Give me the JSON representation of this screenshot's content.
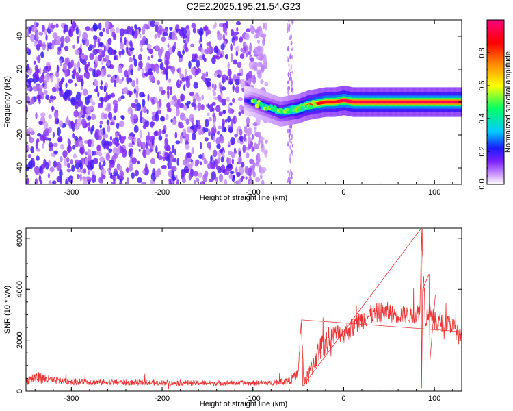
{
  "figure": {
    "title": "C2E2.2025.195.21.54.G23"
  },
  "chart_data": [
    {
      "type": "heatmap",
      "title": "C2E2.2025.195.21.54.G23",
      "xlabel": "Height of straight line (km)",
      "ylabel": "Frequency (Hz)",
      "xlim": [
        -350,
        130
      ],
      "ylim": [
        -50,
        50
      ],
      "x_ticks": [
        -300,
        -200,
        -100,
        0,
        100
      ],
      "y_ticks": [
        -40,
        -20,
        0,
        20,
        40
      ],
      "colorbar": {
        "label": "Normalized spectral amplitude",
        "range": [
          0,
          1
        ],
        "ticks": [
          0.0,
          0.2,
          0.4,
          0.6,
          0.8
        ],
        "colors": [
          "#ffffff",
          "#cc99ff",
          "#7a20ff",
          "#1a1aff",
          "#00ccff",
          "#00ff66",
          "#ffff00",
          "#ff7f00",
          "#ff0000",
          "#ff0080"
        ]
      },
      "noise_region": {
        "x_range": [
          -350,
          -85
        ],
        "freq_range": [
          -50,
          48
        ],
        "amplitude_range": [
          0.05,
          0.2
        ]
      },
      "signal_ridge": {
        "x": [
          -110,
          -100,
          -90,
          -80,
          -70,
          -60,
          -50,
          -40,
          -30,
          -20,
          -10,
          0,
          10,
          30,
          50,
          75,
          90,
          100,
          130
        ],
        "freq": [
          1,
          0,
          -2,
          -4,
          -6,
          -5,
          -4,
          -2,
          -1,
          0,
          0,
          1,
          0,
          0,
          0,
          0,
          0,
          0,
          0
        ],
        "amplitude": [
          0.15,
          0.3,
          0.4,
          0.45,
          0.5,
          0.6,
          0.7,
          0.8,
          0.85,
          0.9,
          0.9,
          0.95,
          0.95,
          0.95,
          0.95,
          0.95,
          0.95,
          0.95,
          0.95
        ]
      }
    },
    {
      "type": "line",
      "xlabel": "Height of straight line (km)",
      "ylabel": "SNR (10 * v/v)",
      "xlim": [
        -350,
        130
      ],
      "ylim": [
        0,
        6400
      ],
      "x_ticks": [
        -300,
        -200,
        -100,
        0,
        100
      ],
      "y_ticks": [
        0,
        2000,
        4000,
        6000
      ],
      "series": [
        {
          "color": "#ee3333",
          "x": [
            -350,
            -340,
            -320,
            -300,
            -280,
            -260,
            -240,
            -220,
            -200,
            -180,
            -160,
            -140,
            -120,
            -100,
            -80,
            -60,
            -50,
            -47,
            -44,
            -40,
            -35,
            -30,
            -25,
            -20,
            -15,
            -10,
            -5,
            0,
            10,
            20,
            30,
            40,
            50,
            60,
            70,
            80,
            84,
            86,
            90,
            95,
            100,
            110,
            120,
            130
          ],
          "y": [
            400,
            550,
            420,
            380,
            360,
            350,
            340,
            330,
            330,
            330,
            320,
            320,
            320,
            320,
            330,
            400,
            700,
            2800,
            400,
            500,
            900,
            1400,
            1700,
            1900,
            2100,
            2200,
            2300,
            2300,
            2500,
            2800,
            3000,
            3100,
            3100,
            3000,
            3000,
            3000,
            3200,
            6400,
            2800,
            3300,
            2700,
            2700,
            2600,
            2000
          ],
          "noise_amplitude": [
            150,
            250,
            150,
            130,
            120,
            110,
            110,
            110,
            110,
            110,
            100,
            100,
            100,
            100,
            100,
            150,
            200,
            300,
            200,
            300,
            400,
            500,
            500,
            500,
            500,
            400,
            400,
            400,
            400,
            400,
            400,
            400,
            400,
            350,
            350,
            350,
            400,
            600,
            400,
            400,
            400,
            350,
            350,
            350
          ]
        }
      ]
    }
  ]
}
